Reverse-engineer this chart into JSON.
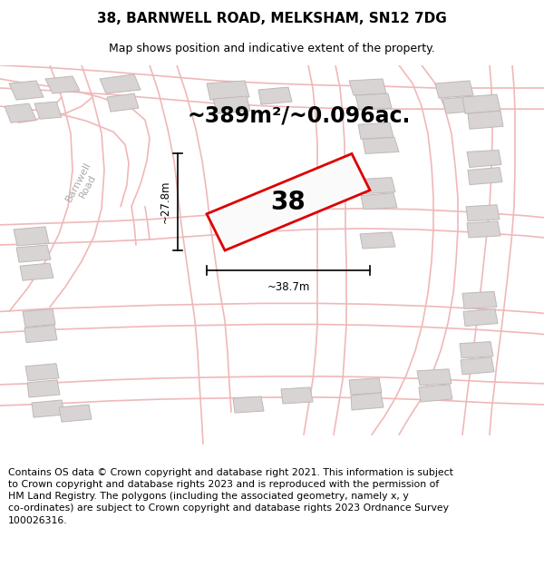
{
  "title": "38, BARNWELL ROAD, MELKSHAM, SN12 7DG",
  "subtitle": "Map shows position and indicative extent of the property.",
  "area_label": "~389m²/~0.096ac.",
  "property_number": "38",
  "dim_width": "~38.7m",
  "dim_height": "~27.8m",
  "road_label": "Barnwell\nRoad",
  "footer": "Contains OS data © Crown copyright and database right 2021. This information is subject\nto Crown copyright and database rights 2023 and is reproduced with the permission of\nHM Land Registry. The polygons (including the associated geometry, namely x, y\nco-ordinates) are subject to Crown copyright and database rights 2023 Ordnance Survey\n100026316.",
  "map_bg": "#fafafa",
  "road_color": "#f0b8b8",
  "building_color": "#d8d4d4",
  "building_edge_color": "#c0b8b8",
  "property_outline_color": "#dd0000",
  "text_color": "#000000",
  "dim_color": "#000000",
  "title_fontsize": 11,
  "subtitle_fontsize": 9,
  "area_fontsize": 17,
  "number_fontsize": 20,
  "footer_fontsize": 7.8,
  "road_label_fontsize": 8,
  "road_lw": 1.2
}
